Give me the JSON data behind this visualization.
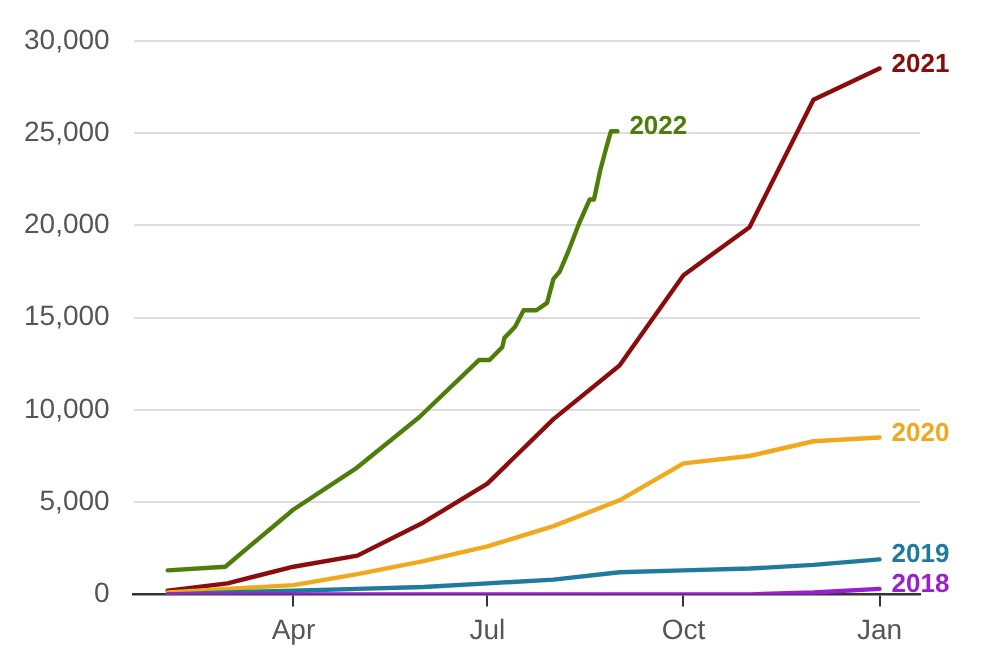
{
  "chart_data": {
    "type": "line",
    "xlim": [
      "2021-01-16",
      "2022-01-20"
    ],
    "xticks": [
      {
        "value": "2021-04-01",
        "label": "Apr"
      },
      {
        "value": "2021-07-01",
        "label": "Jul"
      },
      {
        "value": "2021-10-01",
        "label": "Oct"
      },
      {
        "value": "2022-01-01",
        "label": "Jan"
      }
    ],
    "ylim": [
      0,
      30000
    ],
    "yticks": [
      {
        "value": 0,
        "label": "0"
      },
      {
        "value": 5000,
        "label": "5,000"
      },
      {
        "value": 10000,
        "label": "10,000"
      },
      {
        "value": 15000,
        "label": "15,000"
      },
      {
        "value": 20000,
        "label": "20,000"
      },
      {
        "value": 25000,
        "label": "25,000"
      },
      {
        "value": 30000,
        "label": "30,000"
      }
    ],
    "grid": "y",
    "legend": false,
    "marker": "none",
    "line_style": "solid",
    "series": [
      {
        "name": "2018",
        "color": "#9b1fd0",
        "x": [
          "2021-02-01",
          "2021-03-01",
          "2021-04-01",
          "2021-05-01",
          "2021-06-01",
          "2021-07-01",
          "2021-08-01",
          "2021-09-01",
          "2021-10-01",
          "2021-11-01",
          "2021-12-01",
          "2022-01-01"
        ],
        "values": [
          0,
          0,
          0,
          0,
          0,
          0,
          0,
          0,
          0,
          0,
          100,
          300
        ]
      },
      {
        "name": "2019",
        "color": "#1f7a9e",
        "x": [
          "2021-02-01",
          "2021-03-01",
          "2021-04-01",
          "2021-05-01",
          "2021-06-01",
          "2021-07-01",
          "2021-08-01",
          "2021-09-01",
          "2021-10-01",
          "2021-11-01",
          "2021-12-01",
          "2022-01-01"
        ],
        "values": [
          0,
          100,
          200,
          300,
          400,
          600,
          800,
          1200,
          1300,
          1400,
          1600,
          1900
        ]
      },
      {
        "name": "2020",
        "color": "#f0a81c",
        "x": [
          "2021-02-01",
          "2021-03-01",
          "2021-04-01",
          "2021-05-01",
          "2021-06-01",
          "2021-07-01",
          "2021-08-01",
          "2021-09-01",
          "2021-10-01",
          "2021-11-01",
          "2021-12-01",
          "2022-01-01"
        ],
        "values": [
          100,
          300,
          500,
          1100,
          1800,
          2600,
          3700,
          5100,
          7100,
          7500,
          8300,
          8500
        ]
      },
      {
        "name": "2021",
        "color": "#8b0c0c",
        "x": [
          "2021-02-01",
          "2021-03-01",
          "2021-04-01",
          "2021-05-01",
          "2021-06-01",
          "2021-07-01",
          "2021-08-01",
          "2021-09-01",
          "2021-10-01",
          "2021-11-01",
          "2021-12-01",
          "2022-01-01"
        ],
        "values": [
          200,
          600,
          1500,
          2100,
          3900,
          6000,
          9500,
          12400,
          17300,
          19900,
          26800,
          28500
        ]
      },
      {
        "name": "2022",
        "color": "#4f7d0a",
        "x": [
          "2021-02-01",
          "2021-02-28",
          "2021-04-01",
          "2021-04-30",
          "2021-05-30",
          "2021-06-27",
          "2021-07-02",
          "2021-07-08",
          "2021-07-09",
          "2021-07-14",
          "2021-07-18",
          "2021-07-24",
          "2021-07-29",
          "2021-08-01",
          "2021-08-04",
          "2021-08-08",
          "2021-08-13",
          "2021-08-18",
          "2021-08-20",
          "2021-08-23",
          "2021-08-26",
          "2021-08-28",
          "2021-08-31"
        ],
        "values": [
          1300,
          1500,
          4600,
          6800,
          9600,
          12700,
          12700,
          13400,
          13900,
          14500,
          15400,
          15400,
          15800,
          17100,
          17500,
          18600,
          20100,
          21400,
          21400,
          23000,
          24300,
          25100,
          25100
        ]
      }
    ]
  }
}
